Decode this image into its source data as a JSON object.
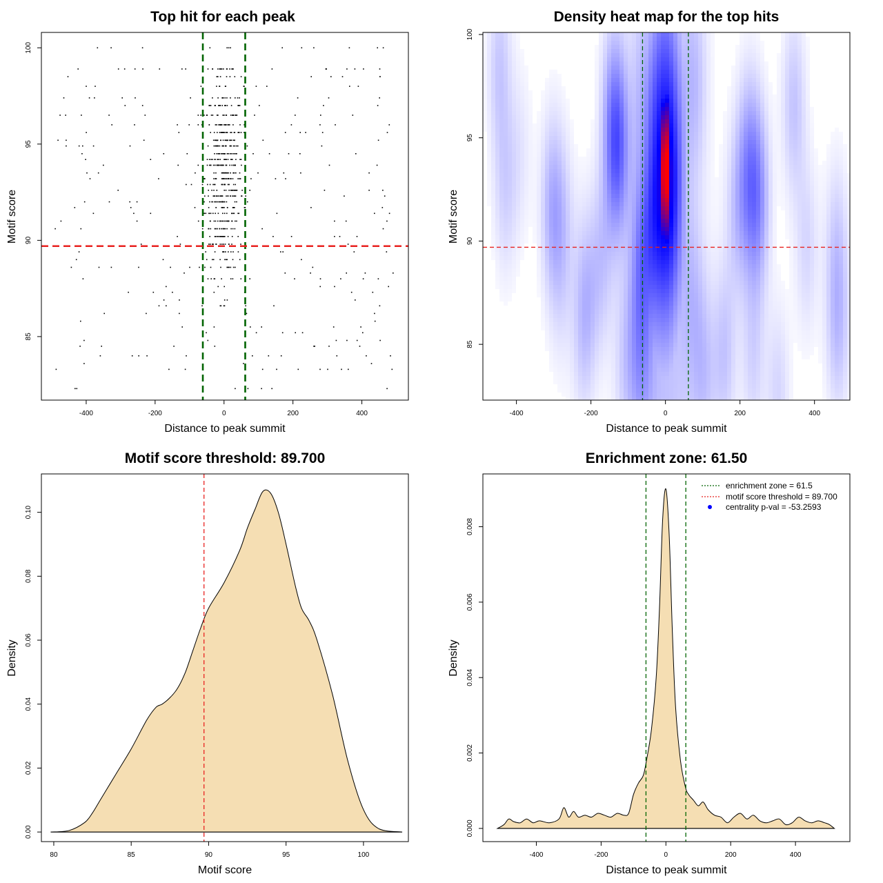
{
  "colors": {
    "enrichment_line": "#006400",
    "threshold_line": "#e8211f",
    "density_fill": "#f5deb3",
    "heat_low": "#ffffff",
    "heat_mid": "#0000ff",
    "heat_high": "#ff0000",
    "legend_point": "#0000ff",
    "points": "#000000"
  },
  "chart_data": [
    {
      "id": "scatter",
      "type": "scatter",
      "title": "Top hit for each peak",
      "xlabel": "Distance to peak summit",
      "ylabel": "Motif score",
      "xlim": [
        -530,
        535
      ],
      "ylim": [
        81.7,
        100.8
      ],
      "xticks": [
        -400,
        -200,
        0,
        200,
        400
      ],
      "yticks": [
        85,
        90,
        95,
        100
      ],
      "xtick_labels": [
        "-400",
        "-200",
        "0",
        "200",
        "400"
      ],
      "ytick_labels": [
        "85",
        "90",
        "95",
        "100"
      ],
      "vlines": [
        -61.5,
        61.5
      ],
      "hline": 89.7,
      "score_levels": [
        82.3,
        83.3,
        83.6,
        84,
        84.5,
        84.8,
        85.2,
        85.5,
        85.8,
        86.2,
        86.6,
        86.9,
        87.3,
        87.6,
        88,
        88.3,
        88.6,
        89,
        89.4,
        89.8,
        90.2,
        90.6,
        91,
        91.4,
        91.7,
        92,
        92.3,
        92.6,
        92.9,
        93.2,
        93.5,
        93.9,
        94.2,
        94.5,
        94.9,
        95.2,
        95.6,
        96,
        96.5,
        97,
        97.4,
        98,
        98.5,
        98.9,
        100
      ],
      "series": [
        {
          "name": "central hits",
          "n": 520,
          "x_sd": 28,
          "y_range": [
            85.5,
            99
          ],
          "y_mode": 93.3
        },
        {
          "name": "background hits",
          "n": 300,
          "x_range": [
            -490,
            495
          ],
          "y_range": [
            82.3,
            100
          ]
        }
      ]
    },
    {
      "id": "heatmap",
      "type": "heatmap",
      "title": "Density heat map for the top hits",
      "xlabel": "Distance to peak summit",
      "ylabel": "Motif score",
      "xlim": [
        -490,
        495
      ],
      "ylim": [
        82.3,
        100.1
      ],
      "xticks": [
        -400,
        -200,
        0,
        200,
        400
      ],
      "yticks": [
        85,
        90,
        95,
        100
      ],
      "xtick_labels": [
        "-400",
        "-200",
        "0",
        "200",
        "400"
      ],
      "ytick_labels": [
        "85",
        "90",
        "95",
        "100"
      ],
      "vlines": [
        -61.5,
        61.5
      ],
      "hline": 89.7,
      "peak": {
        "x": 0,
        "y": 93.5,
        "x_sd": 12,
        "y_sd": 2.8
      },
      "color_scale": [
        "white",
        "blue",
        "red"
      ]
    },
    {
      "id": "score_density",
      "type": "area",
      "title": "Motif score threshold: 89.700",
      "xlabel": "Motif score",
      "ylabel": "Density",
      "xlim": [
        79.2,
        102.9
      ],
      "ylim": [
        -0.003,
        0.112
      ],
      "xticks": [
        80,
        85,
        90,
        95,
        100
      ],
      "yticks": [
        0,
        0.02,
        0.04,
        0.06,
        0.08,
        0.1
      ],
      "xtick_labels": [
        "80",
        "85",
        "90",
        "95",
        "100"
      ],
      "ytick_labels": [
        "0.00",
        "0.02",
        "0.04",
        "0.06",
        "0.08",
        "0.10"
      ],
      "vline": 89.7,
      "x": [
        79.8,
        81,
        82,
        82.5,
        83,
        84,
        85,
        86,
        86.6,
        87,
        87.5,
        88,
        88.5,
        89,
        89.5,
        90,
        91,
        92,
        92.5,
        93,
        93.5,
        94,
        94.5,
        95,
        95.6,
        96,
        96.5,
        97,
        98,
        99,
        100,
        101,
        102.5
      ],
      "y": [
        0.0,
        0.0005,
        0.003,
        0.006,
        0.01,
        0.018,
        0.026,
        0.035,
        0.039,
        0.04,
        0.042,
        0.045,
        0.05,
        0.057,
        0.064,
        0.07,
        0.078,
        0.088,
        0.095,
        0.101,
        0.1065,
        0.106,
        0.1,
        0.09,
        0.077,
        0.07,
        0.066,
        0.06,
        0.043,
        0.022,
        0.007,
        0.001,
        0.0
      ]
    },
    {
      "id": "distance_density",
      "type": "area",
      "title": "Enrichment zone: 61.50",
      "xlabel": "Distance to peak summit",
      "ylabel": "Density",
      "xlim": [
        -565,
        568
      ],
      "ylim": [
        -0.00035,
        0.0094
      ],
      "xticks": [
        -400,
        -200,
        0,
        200,
        400
      ],
      "yticks": [
        0,
        0.002,
        0.004,
        0.006,
        0.008
      ],
      "xtick_labels": [
        "-400",
        "-200",
        "0",
        "200",
        "400"
      ],
      "ytick_labels": [
        "0.000",
        "0.002",
        "0.004",
        "0.006",
        "0.008"
      ],
      "vlines": [
        -61.5,
        61.5
      ],
      "x": [
        -520,
        -500,
        -485,
        -470,
        -450,
        -430,
        -410,
        -390,
        -360,
        -330,
        -315,
        -300,
        -285,
        -270,
        -250,
        -230,
        -210,
        -190,
        -170,
        -150,
        -130,
        -115,
        -100,
        -85,
        -70,
        -60,
        -45,
        -30,
        -20,
        -10,
        0,
        10,
        20,
        30,
        45,
        60,
        70,
        85,
        100,
        115,
        130,
        150,
        170,
        190,
        210,
        230,
        250,
        270,
        290,
        310,
        330,
        350,
        370,
        390,
        410,
        430,
        450,
        470,
        490,
        505,
        520
      ],
      "y": [
        0.0,
        0.0001,
        0.00025,
        0.00018,
        0.00015,
        0.00025,
        0.00015,
        0.0002,
        0.00015,
        0.00025,
        0.00055,
        0.0003,
        0.00045,
        0.0003,
        0.00035,
        0.0003,
        0.0004,
        0.00035,
        0.0003,
        0.0004,
        0.00035,
        0.0004,
        0.0009,
        0.0012,
        0.0014,
        0.0018,
        0.0026,
        0.004,
        0.0058,
        0.0082,
        0.009,
        0.0078,
        0.0052,
        0.0032,
        0.0018,
        0.0011,
        0.0009,
        0.00075,
        0.0006,
        0.0007,
        0.0005,
        0.00035,
        0.0003,
        0.00015,
        0.0003,
        0.0004,
        0.00025,
        0.00035,
        0.0002,
        0.00015,
        0.0002,
        0.00025,
        0.0001,
        0.00015,
        0.0003,
        0.0002,
        0.00015,
        0.0002,
        0.00015,
        0.0001,
        0.0
      ]
    }
  ],
  "legend": {
    "items": [
      {
        "text": "enrichment zone = 61.5",
        "kind": "line",
        "color": "#006400"
      },
      {
        "text": "motif score threshold = 89.700",
        "kind": "line",
        "color": "#e8211f"
      },
      {
        "text": "centrality p-val = -53.2593",
        "kind": "point",
        "color": "#0000ff"
      }
    ]
  }
}
